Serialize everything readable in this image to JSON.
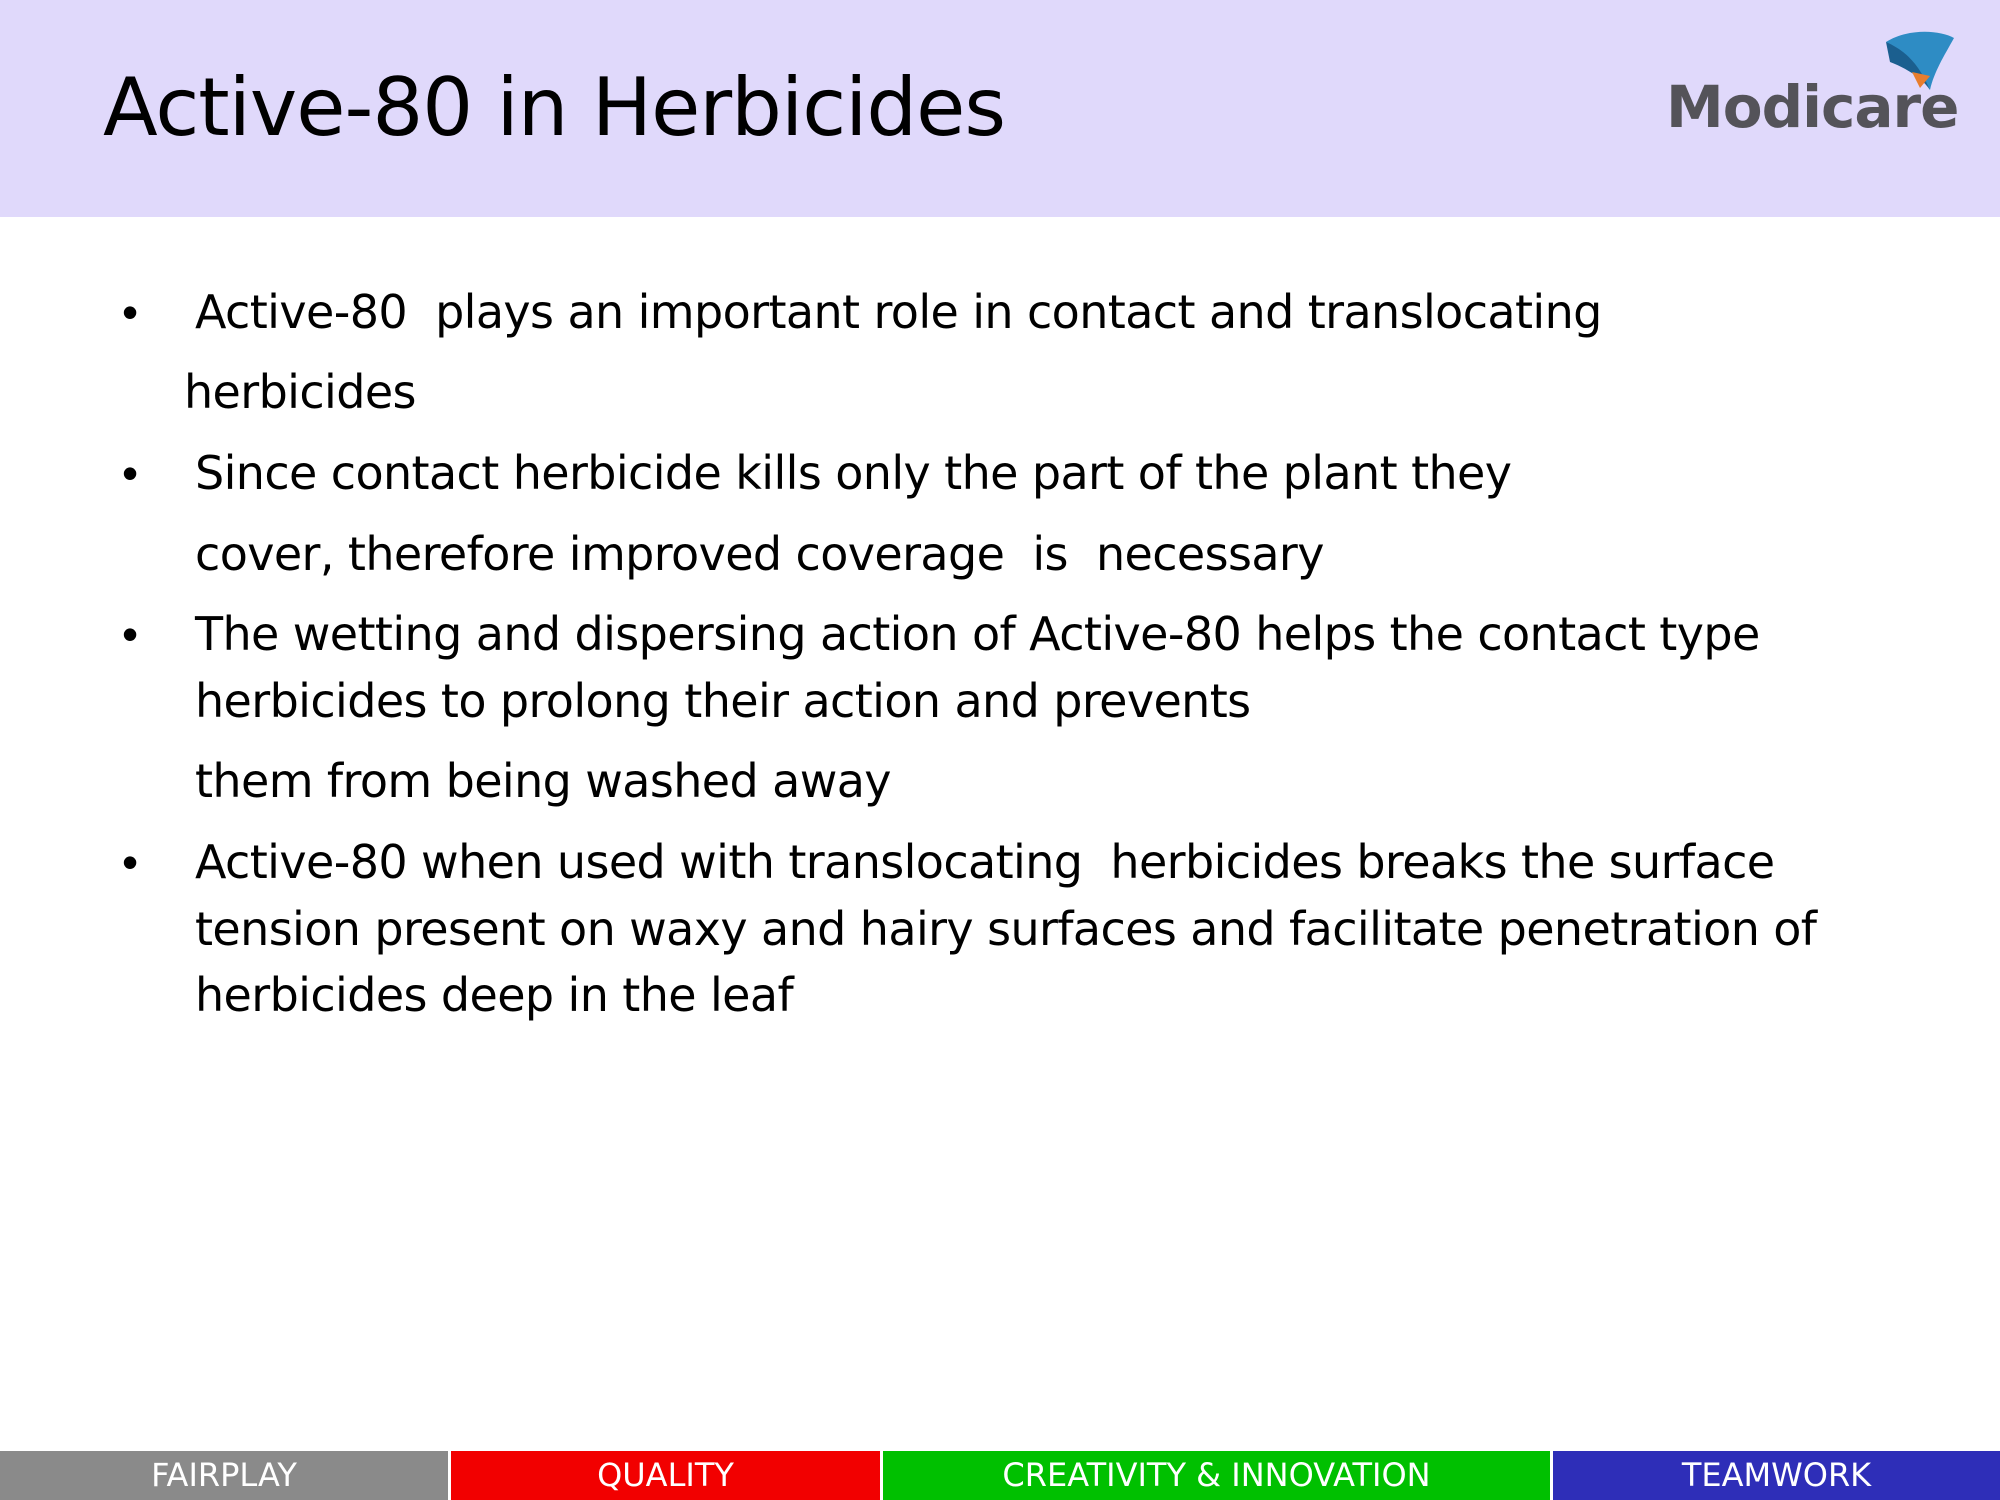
{
  "slide": {
    "title": "Active-80 in Herbicides",
    "logo_text": "Modicare",
    "bullet_glyph": "•",
    "bullets": [
      {
        "lines": [
          "Active-80  plays an important role in contact and translocating",
          "herbicides"
        ]
      },
      {
        "lines": [
          "Since contact herbicide kills only the part of the plant they",
          "cover, therefore improved coverage  is  necessary"
        ]
      },
      {
        "lines": [
          "The wetting and dispersing action of Active-80 helps the contact type",
          "herbicides to prolong their action and prevents",
          "them from being washed away"
        ]
      },
      {
        "lines": [
          "Active-80 when used with translocating  herbicides breaks the surface",
          "tension present on waxy and hairy surfaces and facilitate penetration of",
          "herbicides deep in the leaf"
        ]
      }
    ]
  },
  "footer": {
    "values": [
      {
        "label": "FAIRPLAY",
        "color": "#8a8a8a"
      },
      {
        "label": "QUALITY",
        "color": "#f20000"
      },
      {
        "label": "CREATIVITY & INNOVATION",
        "color": "#00c000"
      },
      {
        "label": "TEAMWORK",
        "color": "#2e2eb8"
      }
    ]
  },
  "colors": {
    "header_background": "#e0d9fb",
    "logo_text": "#545359",
    "logo_blue": "#2e8cc4",
    "logo_orange": "#e87d2c"
  }
}
